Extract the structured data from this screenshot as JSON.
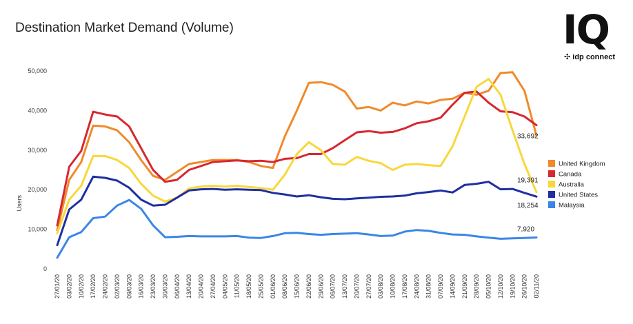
{
  "title": "Destination Market Demand (Volume)",
  "brand": {
    "mark": "IQ",
    "sub": "idp connect"
  },
  "chart_data": {
    "type": "line",
    "ylabel": "Users",
    "ylim": [
      0,
      50000
    ],
    "yticks": [
      0,
      10000,
      20000,
      30000,
      40000,
      50000
    ],
    "ytick_labels": [
      "0",
      "10,000",
      "20,000",
      "30,000",
      "40,000",
      "50,000"
    ],
    "grid": false,
    "legend_position": "right",
    "x": [
      "27/01/20",
      "03/02/20",
      "10/02/20",
      "17/02/20",
      "24/02/20",
      "02/03/20",
      "09/03/20",
      "16/03/20",
      "23/03/20",
      "30/03/20",
      "06/04/20",
      "13/04/20",
      "20/04/20",
      "27/04/20",
      "04/05/20",
      "11/05/20",
      "18/05/20",
      "25/05/20",
      "01/06/20",
      "08/06/20",
      "15/06/20",
      "22/06/20",
      "29/06/20",
      "06/07/20",
      "13/07/20",
      "20/07/20",
      "27/07/20",
      "03/08/20",
      "10/08/20",
      "17/08/20",
      "24/08/20",
      "31/08/20",
      "07/09/20",
      "14/09/20",
      "21/09/20",
      "28/09/20",
      "05/10/20",
      "12/10/20",
      "19/10/20",
      "26/10/20",
      "02/11/20"
    ],
    "series": [
      {
        "name": "United Kingdom",
        "color": "#f08a2b",
        "end_label": "33,692",
        "values": [
          9800,
          22500,
          27000,
          36200,
          36000,
          35000,
          32000,
          27500,
          23500,
          22500,
          24500,
          26500,
          27000,
          27500,
          27500,
          27500,
          27000,
          26000,
          25500,
          33500,
          40000,
          47000,
          47200,
          46500,
          44800,
          40500,
          40900,
          40000,
          42000,
          41300,
          42300,
          41800,
          42700,
          43000,
          44500,
          44000,
          45000,
          49500,
          49700,
          45000,
          33692
        ]
      },
      {
        "name": "Canada",
        "color": "#d7282f",
        "end_label": "",
        "values": [
          11000,
          25800,
          29800,
          39700,
          39000,
          38500,
          36000,
          30500,
          25000,
          22000,
          22500,
          25000,
          26000,
          27000,
          27200,
          27400,
          27200,
          27300,
          27000,
          27800,
          28000,
          29000,
          29000,
          30500,
          32500,
          34500,
          34800,
          34400,
          34600,
          35500,
          36800,
          37300,
          38200,
          41500,
          44500,
          44800,
          42000,
          39800,
          39600,
          38500,
          36300
        ]
      },
      {
        "name": "Australia",
        "color": "#f8d73a",
        "end_label": "19,391",
        "values": [
          9000,
          17500,
          21000,
          28500,
          28500,
          27500,
          25500,
          21500,
          18500,
          17000,
          18000,
          20300,
          20800,
          21000,
          20800,
          21000,
          20700,
          20400,
          20000,
          23800,
          29000,
          32000,
          30000,
          26500,
          26300,
          28300,
          27300,
          26700,
          25000,
          26300,
          26500,
          26200,
          26000,
          31000,
          38500,
          46000,
          48000,
          44000,
          35000,
          26500,
          19391
        ]
      },
      {
        "name": "United States",
        "color": "#1f2fa0",
        "end_label": "18,254",
        "values": [
          6000,
          15000,
          17500,
          23300,
          23000,
          22300,
          20500,
          17500,
          16000,
          16200,
          18000,
          19800,
          20100,
          20200,
          20000,
          20100,
          20000,
          19900,
          19200,
          18800,
          18300,
          18600,
          18100,
          17700,
          17600,
          17800,
          18000,
          18200,
          18300,
          18500,
          19100,
          19400,
          19800,
          19300,
          21200,
          21500,
          22000,
          20100,
          20200,
          19200,
          18254
        ]
      },
      {
        "name": "Malaysia",
        "color": "#3a86e8",
        "end_label": "7,920",
        "values": [
          2800,
          8000,
          9300,
          12800,
          13200,
          16000,
          17400,
          15200,
          11000,
          8000,
          8100,
          8300,
          8200,
          8200,
          8200,
          8300,
          7900,
          7800,
          8300,
          9000,
          9100,
          8800,
          8600,
          8800,
          8900,
          9000,
          8700,
          8300,
          8400,
          9400,
          9800,
          9600,
          9100,
          8700,
          8600,
          8200,
          7900,
          7600,
          7700,
          7800,
          7920
        ]
      }
    ]
  }
}
